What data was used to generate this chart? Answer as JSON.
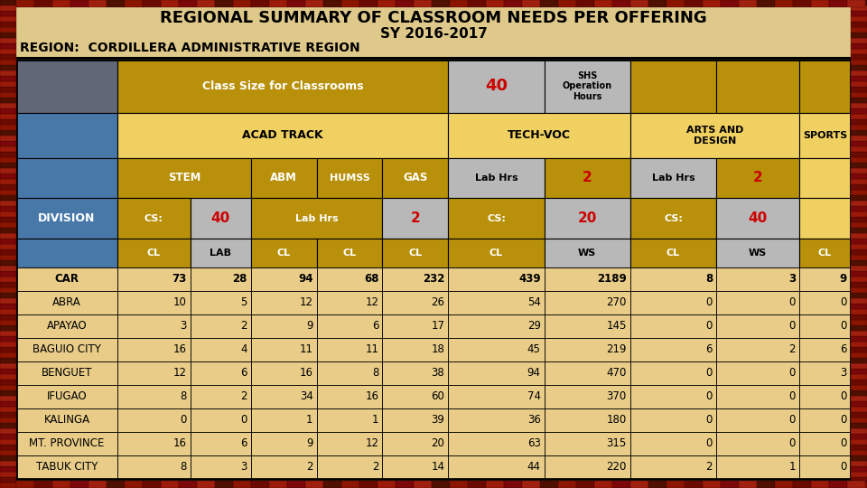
{
  "title1": "REGIONAL SUMMARY OF CLASSROOM NEEDS PER OFFERING",
  "title2": "SY 2016-2017",
  "title3": "REGION:  CORDILLERA ADMINISTRATIVE REGION",
  "bg_color": "#DFC98A",
  "gold_dark": "#A07800",
  "gold_mid": "#B8900A",
  "yellow_light": "#E8B800",
  "yellow_pale": "#F0D060",
  "gray_blue": "#606878",
  "steel_blue": "#4878A8",
  "light_gray": "#B8B8B8",
  "row_tan": "#E8CC88",
  "red": "#CC0000",
  "black": "#000000",
  "white": "#FFFFFF",
  "divisions": [
    "CAR",
    "ABRA",
    "APAYAO",
    "BAGUIO CITY",
    "BENGUET",
    "IFUGAO",
    "KALINGA",
    "MT. PROVINCE",
    "TABUK CITY"
  ],
  "data": [
    [
      73,
      28,
      94,
      68,
      232,
      439,
      2189,
      8,
      3,
      9
    ],
    [
      10,
      5,
      12,
      12,
      26,
      54,
      270,
      0,
      0,
      0
    ],
    [
      3,
      2,
      9,
      6,
      17,
      29,
      145,
      0,
      0,
      0
    ],
    [
      16,
      4,
      11,
      11,
      18,
      45,
      219,
      6,
      2,
      6
    ],
    [
      12,
      6,
      16,
      8,
      38,
      94,
      470,
      0,
      0,
      3
    ],
    [
      8,
      2,
      34,
      16,
      60,
      74,
      370,
      0,
      0,
      0
    ],
    [
      0,
      0,
      1,
      1,
      39,
      36,
      180,
      0,
      0,
      0
    ],
    [
      16,
      6,
      9,
      12,
      20,
      63,
      315,
      0,
      0,
      0
    ],
    [
      8,
      3,
      2,
      2,
      14,
      44,
      220,
      2,
      1,
      0
    ]
  ],
  "border_tile_colors": [
    "#8B1500",
    "#6B0000",
    "#A02010",
    "#7B1008"
  ],
  "fig_w": 9.6,
  "fig_h": 5.4,
  "dpi": 100
}
